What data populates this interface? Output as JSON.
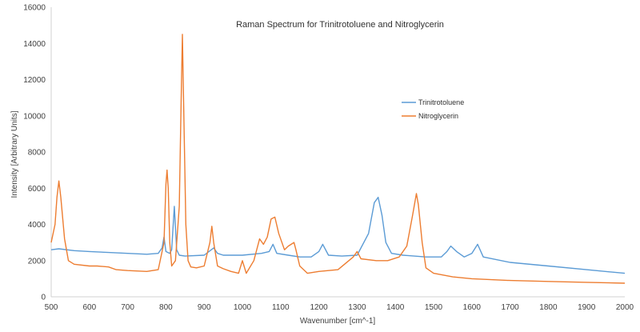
{
  "chart_data": {
    "type": "line",
    "title": "Raman Spectrum for Trinitrotoluene and Nitroglycerin",
    "xlabel": "Wavenumber [cm^-1]",
    "ylabel": "Intensity [Arbitrary Units]",
    "xlim": [
      500,
      2000
    ],
    "ylim": [
      0,
      16000
    ],
    "x_ticks": [
      "500",
      "600",
      "700",
      "800",
      "900",
      "1000",
      "1100",
      "1200",
      "1300",
      "1400",
      "1500",
      "1600",
      "1700",
      "1800",
      "1900",
      "2000"
    ],
    "y_ticks": [
      "0",
      "2000",
      "4000",
      "6000",
      "8000",
      "10000",
      "12000",
      "14000",
      "16000"
    ],
    "grid": "none",
    "legend_position": "right-center",
    "series": [
      {
        "name": "Trinitrotoluene",
        "color": "#5b9bd5",
        "x": [
          500,
          520,
          560,
          600,
          650,
          700,
          750,
          780,
          790,
          795,
          800,
          810,
          815,
          822,
          828,
          835,
          850,
          900,
          925,
          935,
          950,
          1000,
          1050,
          1070,
          1080,
          1090,
          1120,
          1150,
          1180,
          1200,
          1210,
          1225,
          1260,
          1300,
          1330,
          1345,
          1355,
          1365,
          1375,
          1390,
          1420,
          1480,
          1520,
          1535,
          1545,
          1560,
          1580,
          1600,
          1615,
          1630,
          1700,
          1800,
          1900,
          2000
        ],
        "y": [
          2600,
          2650,
          2550,
          2500,
          2450,
          2400,
          2350,
          2400,
          2700,
          3300,
          2500,
          2400,
          2600,
          5000,
          2600,
          2300,
          2250,
          2300,
          2700,
          2400,
          2300,
          2300,
          2400,
          2500,
          2900,
          2400,
          2300,
          2200,
          2200,
          2500,
          2900,
          2300,
          2250,
          2300,
          3500,
          5200,
          5500,
          4500,
          3000,
          2400,
          2300,
          2200,
          2200,
          2500,
          2800,
          2500,
          2200,
          2400,
          2900,
          2200,
          1900,
          1700,
          1500,
          1300
        ]
      },
      {
        "name": "Nitroglycerin",
        "color": "#ed7d31",
        "x": [
          500,
          510,
          515,
          520,
          525,
          535,
          545,
          560,
          600,
          620,
          650,
          670,
          700,
          750,
          780,
          795,
          800,
          803,
          806,
          810,
          815,
          825,
          835,
          840,
          843,
          846,
          852,
          858,
          865,
          880,
          900,
          915,
          920,
          925,
          935,
          950,
          970,
          990,
          1000,
          1010,
          1030,
          1045,
          1055,
          1065,
          1075,
          1085,
          1095,
          1110,
          1120,
          1135,
          1140,
          1150,
          1170,
          1200,
          1250,
          1290,
          1300,
          1310,
          1350,
          1380,
          1410,
          1430,
          1445,
          1455,
          1460,
          1470,
          1480,
          1500,
          1550,
          1600,
          1700,
          1800,
          1900,
          2000
        ],
        "y": [
          3000,
          4000,
          5500,
          6400,
          5500,
          3200,
          2000,
          1800,
          1700,
          1700,
          1650,
          1500,
          1450,
          1400,
          1500,
          3000,
          6200,
          7000,
          6000,
          3000,
          1700,
          2000,
          5000,
          11000,
          14500,
          11000,
          4000,
          2000,
          1650,
          1600,
          1700,
          3000,
          3900,
          3000,
          1700,
          1550,
          1400,
          1300,
          2000,
          1300,
          2000,
          3200,
          2900,
          3300,
          4300,
          4400,
          3500,
          2600,
          2800,
          3000,
          2600,
          1700,
          1300,
          1400,
          1500,
          2200,
          2500,
          2100,
          2000,
          2000,
          2200,
          2800,
          4500,
          5700,
          5100,
          3000,
          1600,
          1300,
          1100,
          1000,
          900,
          850,
          800,
          750
        ]
      }
    ]
  }
}
